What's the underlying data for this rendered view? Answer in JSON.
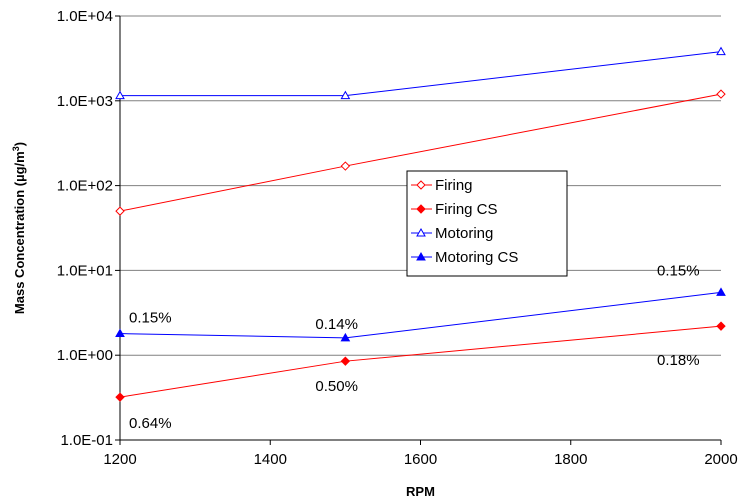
{
  "chart_data": {
    "type": "line",
    "y_scale": "log",
    "xlabel": "RPM",
    "ylabel_main": "Mass Concentration (µg/m",
    "ylabel_sup": "3",
    "ylabel_close": ")",
    "xlim": [
      1200,
      2000
    ],
    "ylim": [
      0.1,
      10000
    ],
    "x_ticks": [
      1200,
      1400,
      1600,
      1800,
      2000
    ],
    "x_tick_labels": [
      "1200",
      "1400",
      "1600",
      "1800",
      "2000"
    ],
    "y_ticks": [
      0.1,
      1,
      10,
      100,
      1000,
      10000
    ],
    "y_tick_labels": [
      "1.0E-01",
      "1.0E+00",
      "1.0E+01",
      "1.0E+02",
      "1.0E+03",
      "1.0E+04"
    ],
    "grid": "horizontal",
    "legend_position": "center-right",
    "series": [
      {
        "name": "Firing",
        "color": "#ff0000",
        "marker": "diamond-open",
        "x": [
          1200,
          1500,
          2000
        ],
        "values": [
          50,
          170,
          1200
        ]
      },
      {
        "name": "Firing CS",
        "color": "#ff0000",
        "marker": "diamond-filled",
        "x": [
          1200,
          1500,
          2000
        ],
        "values": [
          0.32,
          0.85,
          2.2
        ]
      },
      {
        "name": "Motoring",
        "color": "#0000ff",
        "marker": "triangle-open",
        "x": [
          1200,
          1500,
          2000
        ],
        "values": [
          1150,
          1150,
          3800
        ]
      },
      {
        "name": "Motoring CS",
        "color": "#0000ff",
        "marker": "triangle-filled",
        "x": [
          1200,
          1500,
          2000
        ],
        "values": [
          1.8,
          1.6,
          5.5
        ]
      }
    ],
    "annotations": [
      {
        "text": "0.15%",
        "x": 1200,
        "y": 1.8,
        "pos": "above-right"
      },
      {
        "text": "0.14%",
        "x": 1500,
        "y": 1.6,
        "pos": "above"
      },
      {
        "text": "0.15%",
        "x": 2000,
        "y": 5.5,
        "pos": "above-left"
      },
      {
        "text": "0.64%",
        "x": 1200,
        "y": 0.32,
        "pos": "below-right"
      },
      {
        "text": "0.50%",
        "x": 1500,
        "y": 0.85,
        "pos": "below"
      },
      {
        "text": "0.18%",
        "x": 2000,
        "y": 2.2,
        "pos": "below-left"
      }
    ]
  }
}
